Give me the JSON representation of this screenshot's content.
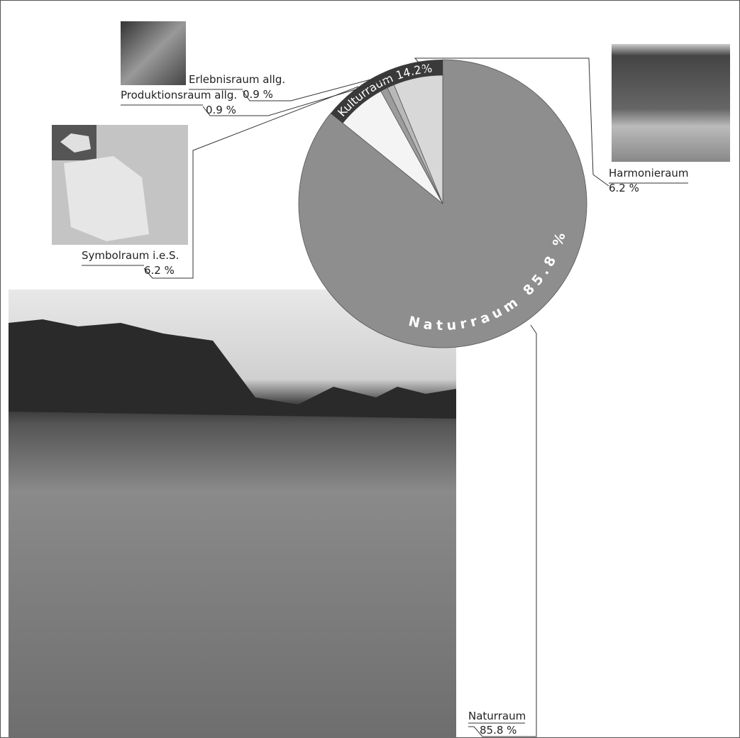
{
  "chart_data": {
    "type": "pie",
    "categories": [
      "Naturraum",
      "Symbolraum i.e.S.",
      "Produktionsraum allg.",
      "Erlebnisraum allg.",
      "Harmonieraum"
    ],
    "values": [
      85.8,
      6.2,
      0.9,
      0.9,
      6.2
    ],
    "value_labels": [
      "85.8 %",
      "6.2 %",
      "0.9 %",
      "0.9 %",
      "6.2 %"
    ],
    "colors": [
      "#8e8e8e",
      "#f4f4f4",
      "#9c9c9c",
      "#b8b8b8",
      "#d8d8d8"
    ],
    "group_label": "Kulturraum 14.2%",
    "inner_label": "Naturraum 85.8 %"
  }
}
